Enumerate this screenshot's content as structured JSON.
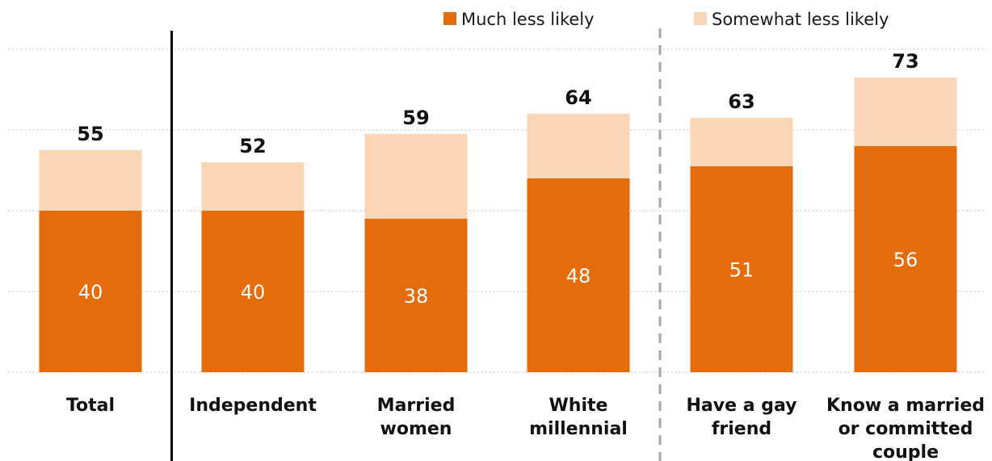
{
  "chart_data": {
    "type": "bar",
    "stacked": true,
    "categories": [
      [
        "Total"
      ],
      [
        "Independent"
      ],
      [
        "Married",
        "women"
      ],
      [
        "White",
        "millennial"
      ],
      [
        "Have a gay",
        "friend"
      ],
      [
        "Know a married",
        "or committed",
        "couple"
      ]
    ],
    "series": [
      {
        "name": "Much less likely",
        "color": "#e46c0a",
        "values": [
          40,
          40,
          38,
          48,
          51,
          56
        ]
      },
      {
        "name": "Somewhat less likely",
        "color": "#fad5b6",
        "values": [
          15,
          12,
          21,
          16,
          12,
          17
        ]
      }
    ],
    "totals": [
      55,
      52,
      59,
      64,
      63,
      73
    ],
    "ylim": [
      0,
      80
    ],
    "grid": true,
    "legend_position": "top-right",
    "separators": [
      {
        "after_index": 0,
        "style": "solid"
      },
      {
        "after_index": 3,
        "style": "dashed"
      }
    ]
  }
}
